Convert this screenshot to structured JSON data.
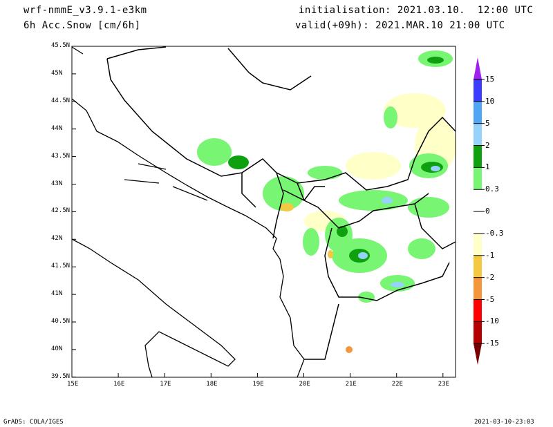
{
  "header": {
    "model": "wrf-nmmE_v3.9.1-e3km",
    "variable": "6h Acc.Snow [cm/6h]",
    "init": "initialisation: 2021.03.10.  12:00 UTC",
    "valid": "valid(+09h): 2021.MAR.10 21:00 UTC"
  },
  "footer": {
    "left": "GrADS: COLA/IGES",
    "right": "2021-03-10-23:03"
  },
  "axes": {
    "lon_ticks": [
      "15E",
      "16E",
      "17E",
      "18E",
      "19E",
      "20E",
      "21E",
      "22E",
      "23E"
    ],
    "lat_ticks": [
      "45.5N",
      "45N",
      "44.5N",
      "44N",
      "43.5N",
      "43N",
      "42.5N",
      "42N",
      "41.5N",
      "41N",
      "40.5N",
      "40N",
      "39.5N"
    ]
  },
  "colorbar": {
    "labels": [
      "15",
      "10",
      "5",
      "2",
      "1",
      "0.3",
      "0",
      "-0.3",
      "-1",
      "-2",
      "-5",
      "-10",
      "-15"
    ],
    "colors": [
      "#3c3cff",
      "#50a5f5",
      "#96d2fa",
      "#0fa00f",
      "#78f573",
      "#ffffff",
      "#ffffff",
      "#ffffc8",
      "#f5c841",
      "#f5963c",
      "#ff0000",
      "#b40000"
    ],
    "top_arrow": "#a020f0",
    "bottom_arrow": "#780000"
  }
}
